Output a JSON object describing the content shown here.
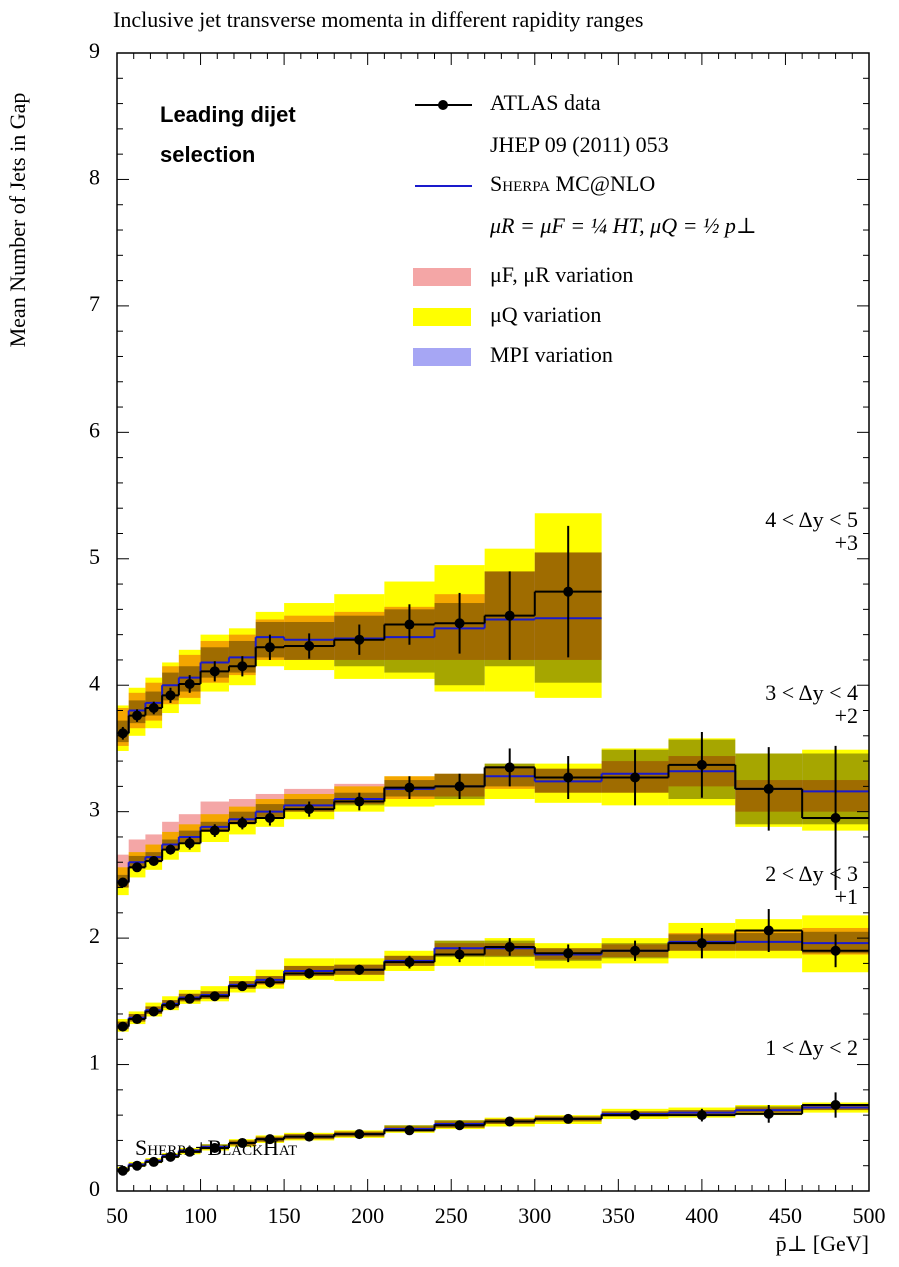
{
  "chart_data": {
    "type": "step-band",
    "title": "Inclusive jet transverse momenta in different rapidity ranges",
    "ylabel": "Mean Number of Jets in Gap",
    "xlabel": "p̄⊥ [GeV]",
    "annotation_lines": [
      "Leading dijet",
      "selection"
    ],
    "annotation_color": "#e8202a",
    "watermark": "Sherpa+BlackHat",
    "xlim": [
      50,
      500
    ],
    "xticks": [
      50,
      100,
      150,
      200,
      250,
      300,
      350,
      400,
      450,
      500
    ],
    "ylim": [
      0,
      9
    ],
    "yticks": [
      0,
      1,
      2,
      3,
      4,
      5,
      6,
      7,
      8,
      9
    ],
    "bins": [
      50,
      57,
      67,
      77,
      87,
      100,
      117,
      133,
      150,
      180,
      210,
      240,
      270,
      300,
      340,
      380,
      420,
      460,
      500
    ],
    "series": [
      {
        "name": "ATLAS data",
        "note": "JHEP 09 (2011) 053",
        "color": "#000000"
      },
      {
        "name": "Sherpa MC@NLO",
        "note": "μR = μF = ¼ HT,   μQ = ½ p⊥",
        "color": "#1a1acc"
      }
    ],
    "bands": [
      {
        "name": "μF, μR variation",
        "color": "#f4a6a6"
      },
      {
        "name": "μQ variation",
        "color": "#ffff00"
      },
      {
        "name": "MPI variation",
        "color": "#a6a6f4"
      }
    ],
    "groups": [
      {
        "label": "4 < Δy < 5",
        "offset": "+3",
        "values": [
          3.62,
          3.76,
          3.82,
          3.92,
          4.01,
          4.11,
          4.15,
          4.3,
          4.31,
          4.36,
          4.48,
          4.49,
          4.55,
          4.74,
          null,
          null,
          null,
          null
        ],
        "errors": [
          0.05,
          0.05,
          0.05,
          0.06,
          0.07,
          0.08,
          0.08,
          0.1,
          0.1,
          0.12,
          0.16,
          0.24,
          0.35,
          0.52,
          null,
          null,
          null,
          null
        ],
        "mc": [
          3.62,
          3.8,
          3.86,
          4.0,
          4.06,
          4.18,
          4.22,
          4.38,
          4.36,
          4.37,
          4.38,
          4.45,
          4.52,
          4.53,
          null,
          null,
          null,
          null
        ],
        "bands": [
          {
            "lower": [
              3.52,
              3.66,
              3.72,
              3.85,
              3.9,
              4.02,
              4.08,
              4.2,
              4.2,
              4.2,
              4.2,
              4.2,
              4.2,
              4.2,
              null,
              null,
              null,
              null
            ],
            "upper": [
              3.82,
              3.94,
              4.02,
              4.15,
              4.24,
              4.35,
              4.4,
              4.52,
              4.55,
              4.58,
              4.62,
              4.72,
              4.9,
              5.05,
              null,
              null,
              null,
              null
            ]
          },
          {
            "lower": [
              3.48,
              3.6,
              3.66,
              3.78,
              3.85,
              3.95,
              4.0,
              4.15,
              4.12,
              4.05,
              4.05,
              3.95,
              3.95,
              3.9,
              null,
              null,
              null,
              null
            ],
            "upper": [
              3.84,
              3.98,
              4.06,
              4.18,
              4.28,
              4.4,
              4.45,
              4.58,
              4.65,
              4.72,
              4.82,
              4.95,
              5.08,
              5.36,
              null,
              null,
              null,
              null
            ]
          },
          {
            "lower": [
              3.55,
              3.7,
              3.76,
              3.88,
              3.95,
              4.06,
              4.1,
              4.22,
              4.2,
              4.15,
              4.1,
              4.0,
              4.15,
              4.02,
              null,
              null,
              null,
              null
            ],
            "upper": [
              3.72,
              3.88,
              3.95,
              4.1,
              4.15,
              4.3,
              4.35,
              4.5,
              4.5,
              4.55,
              4.6,
              4.65,
              4.9,
              5.05,
              null,
              null,
              null,
              null
            ]
          }
        ]
      },
      {
        "label": "3 < Δy < 4",
        "offset": "+2",
        "values": [
          2.44,
          2.56,
          2.61,
          2.7,
          2.75,
          2.85,
          2.91,
          2.95,
          3.02,
          3.08,
          3.19,
          3.2,
          3.35,
          3.27,
          3.27,
          3.37,
          3.18,
          2.95
        ],
        "errors": [
          0.03,
          0.03,
          0.03,
          0.04,
          0.05,
          0.05,
          0.05,
          0.06,
          0.06,
          0.07,
          0.09,
          0.1,
          0.15,
          0.17,
          0.22,
          0.26,
          0.33,
          0.57
        ],
        "mc": [
          2.45,
          2.6,
          2.64,
          2.74,
          2.8,
          2.88,
          2.94,
          3.0,
          3.05,
          3.1,
          3.18,
          3.2,
          3.28,
          3.24,
          3.3,
          3.32,
          3.18,
          3.16
        ],
        "bands": [
          {
            "lower": [
              2.4,
              2.55,
              2.6,
              2.7,
              2.76,
              2.84,
              2.9,
              2.96,
              3.0,
              3.06,
              3.1,
              3.12,
              3.18,
              3.15,
              3.15,
              3.2,
              3.0,
              3.0
            ],
            "upper": [
              2.66,
              2.78,
              2.82,
              2.92,
              2.98,
              3.08,
              3.1,
              3.14,
              3.18,
              3.22,
              3.28,
              3.3,
              3.36,
              3.34,
              3.4,
              3.44,
              3.25,
              3.25
            ]
          },
          {
            "lower": [
              2.34,
              2.48,
              2.54,
              2.62,
              2.68,
              2.76,
              2.82,
              2.88,
              2.94,
              3.0,
              3.04,
              3.05,
              3.1,
              3.07,
              3.05,
              3.05,
              2.88,
              2.85
            ],
            "upper": [
              2.56,
              2.68,
              2.74,
              2.84,
              2.9,
              2.98,
              3.04,
              3.1,
              3.14,
              3.2,
              3.28,
              3.3,
              3.38,
              3.38,
              3.5,
              3.58,
              3.46,
              3.49
            ]
          },
          {
            "lower": [
              2.4,
              2.55,
              2.6,
              2.7,
              2.75,
              2.84,
              2.9,
              2.95,
              3.0,
              3.05,
              3.12,
              3.1,
              3.2,
              3.15,
              3.15,
              3.1,
              2.9,
              2.9
            ],
            "upper": [
              2.5,
              2.65,
              2.68,
              2.78,
              2.85,
              2.92,
              3.0,
              3.06,
              3.1,
              3.15,
              3.25,
              3.3,
              3.38,
              3.34,
              3.49,
              3.57,
              3.46,
              3.46
            ]
          }
        ]
      },
      {
        "label": "2 < Δy < 3",
        "offset": "+1",
        "values": [
          1.3,
          1.36,
          1.42,
          1.47,
          1.52,
          1.54,
          1.62,
          1.65,
          1.72,
          1.75,
          1.81,
          1.87,
          1.93,
          1.88,
          1.9,
          1.96,
          2.06,
          1.9
        ],
        "errors": [
          0.02,
          0.02,
          0.02,
          0.03,
          0.03,
          0.03,
          0.03,
          0.04,
          0.04,
          0.04,
          0.05,
          0.06,
          0.07,
          0.07,
          0.08,
          0.12,
          0.17,
          0.13
        ],
        "mc": [
          1.31,
          1.37,
          1.43,
          1.48,
          1.53,
          1.55,
          1.63,
          1.67,
          1.74,
          1.75,
          1.82,
          1.92,
          1.92,
          1.87,
          1.9,
          1.97,
          1.97,
          1.96
        ],
        "bands": [
          {
            "lower": [
              1.28,
              1.34,
              1.4,
              1.45,
              1.5,
              1.52,
              1.6,
              1.63,
              1.7,
              1.71,
              1.78,
              1.86,
              1.86,
              1.83,
              1.85,
              1.9,
              1.9,
              1.87
            ],
            "upper": [
              1.34,
              1.4,
              1.46,
              1.51,
              1.56,
              1.58,
              1.66,
              1.7,
              1.78,
              1.79,
              1.86,
              1.96,
              1.96,
              1.92,
              1.95,
              2.04,
              2.06,
              2.08
            ]
          },
          {
            "lower": [
              1.26,
              1.32,
              1.38,
              1.43,
              1.48,
              1.5,
              1.57,
              1.6,
              1.67,
              1.66,
              1.74,
              1.78,
              1.78,
              1.76,
              1.8,
              1.84,
              1.84,
              1.73
            ],
            "upper": [
              1.36,
              1.42,
              1.49,
              1.54,
              1.59,
              1.62,
              1.7,
              1.75,
              1.84,
              1.84,
              1.9,
              1.98,
              2.0,
              1.96,
              2.0,
              2.12,
              2.15,
              2.18
            ]
          },
          {
            "lower": [
              1.28,
              1.34,
              1.4,
              1.45,
              1.5,
              1.52,
              1.6,
              1.64,
              1.7,
              1.71,
              1.78,
              1.85,
              1.85,
              1.82,
              1.84,
              1.9,
              1.9,
              1.88
            ],
            "upper": [
              1.34,
              1.4,
              1.46,
              1.51,
              1.56,
              1.58,
              1.66,
              1.7,
              1.78,
              1.79,
              1.86,
              1.98,
              1.98,
              1.92,
              1.96,
              2.03,
              2.04,
              2.05
            ]
          }
        ]
      },
      {
        "label": "1 < Δy < 2",
        "offset": null,
        "values": [
          0.16,
          0.2,
          0.23,
          0.27,
          0.31,
          0.34,
          0.38,
          0.41,
          0.43,
          0.45,
          0.48,
          0.52,
          0.55,
          0.57,
          0.6,
          0.6,
          0.61,
          0.68
        ],
        "errors": [
          0.02,
          0.02,
          0.02,
          0.02,
          0.02,
          0.02,
          0.02,
          0.02,
          0.02,
          0.02,
          0.02,
          0.03,
          0.03,
          0.03,
          0.04,
          0.05,
          0.07,
          0.1
        ],
        "mc": [
          0.17,
          0.21,
          0.24,
          0.28,
          0.32,
          0.35,
          0.38,
          0.41,
          0.43,
          0.45,
          0.49,
          0.53,
          0.55,
          0.57,
          0.61,
          0.62,
          0.64,
          0.66
        ],
        "bands": [
          {
            "lower": [
              0.16,
              0.2,
              0.23,
              0.27,
              0.3,
              0.33,
              0.36,
              0.39,
              0.41,
              0.43,
              0.47,
              0.5,
              0.53,
              0.55,
              0.59,
              0.6,
              0.62,
              0.64
            ],
            "upper": [
              0.18,
              0.22,
              0.25,
              0.29,
              0.33,
              0.36,
              0.4,
              0.43,
              0.45,
              0.47,
              0.51,
              0.55,
              0.57,
              0.59,
              0.63,
              0.64,
              0.66,
              0.68
            ]
          },
          {
            "lower": [
              0.15,
              0.19,
              0.22,
              0.26,
              0.29,
              0.32,
              0.35,
              0.38,
              0.4,
              0.42,
              0.46,
              0.49,
              0.51,
              0.53,
              0.57,
              0.58,
              0.6,
              0.62
            ],
            "upper": [
              0.19,
              0.23,
              0.26,
              0.3,
              0.34,
              0.37,
              0.41,
              0.44,
              0.46,
              0.48,
              0.52,
              0.56,
              0.58,
              0.6,
              0.65,
              0.66,
              0.68,
              0.7
            ]
          },
          {
            "lower": [
              0.16,
              0.2,
              0.23,
              0.27,
              0.3,
              0.33,
              0.36,
              0.39,
              0.41,
              0.43,
              0.47,
              0.5,
              0.53,
              0.55,
              0.59,
              0.6,
              0.62,
              0.64
            ],
            "upper": [
              0.18,
              0.22,
              0.25,
              0.29,
              0.33,
              0.37,
              0.4,
              0.43,
              0.45,
              0.47,
              0.52,
              0.56,
              0.57,
              0.59,
              0.63,
              0.64,
              0.67,
              0.68
            ]
          }
        ]
      }
    ]
  }
}
